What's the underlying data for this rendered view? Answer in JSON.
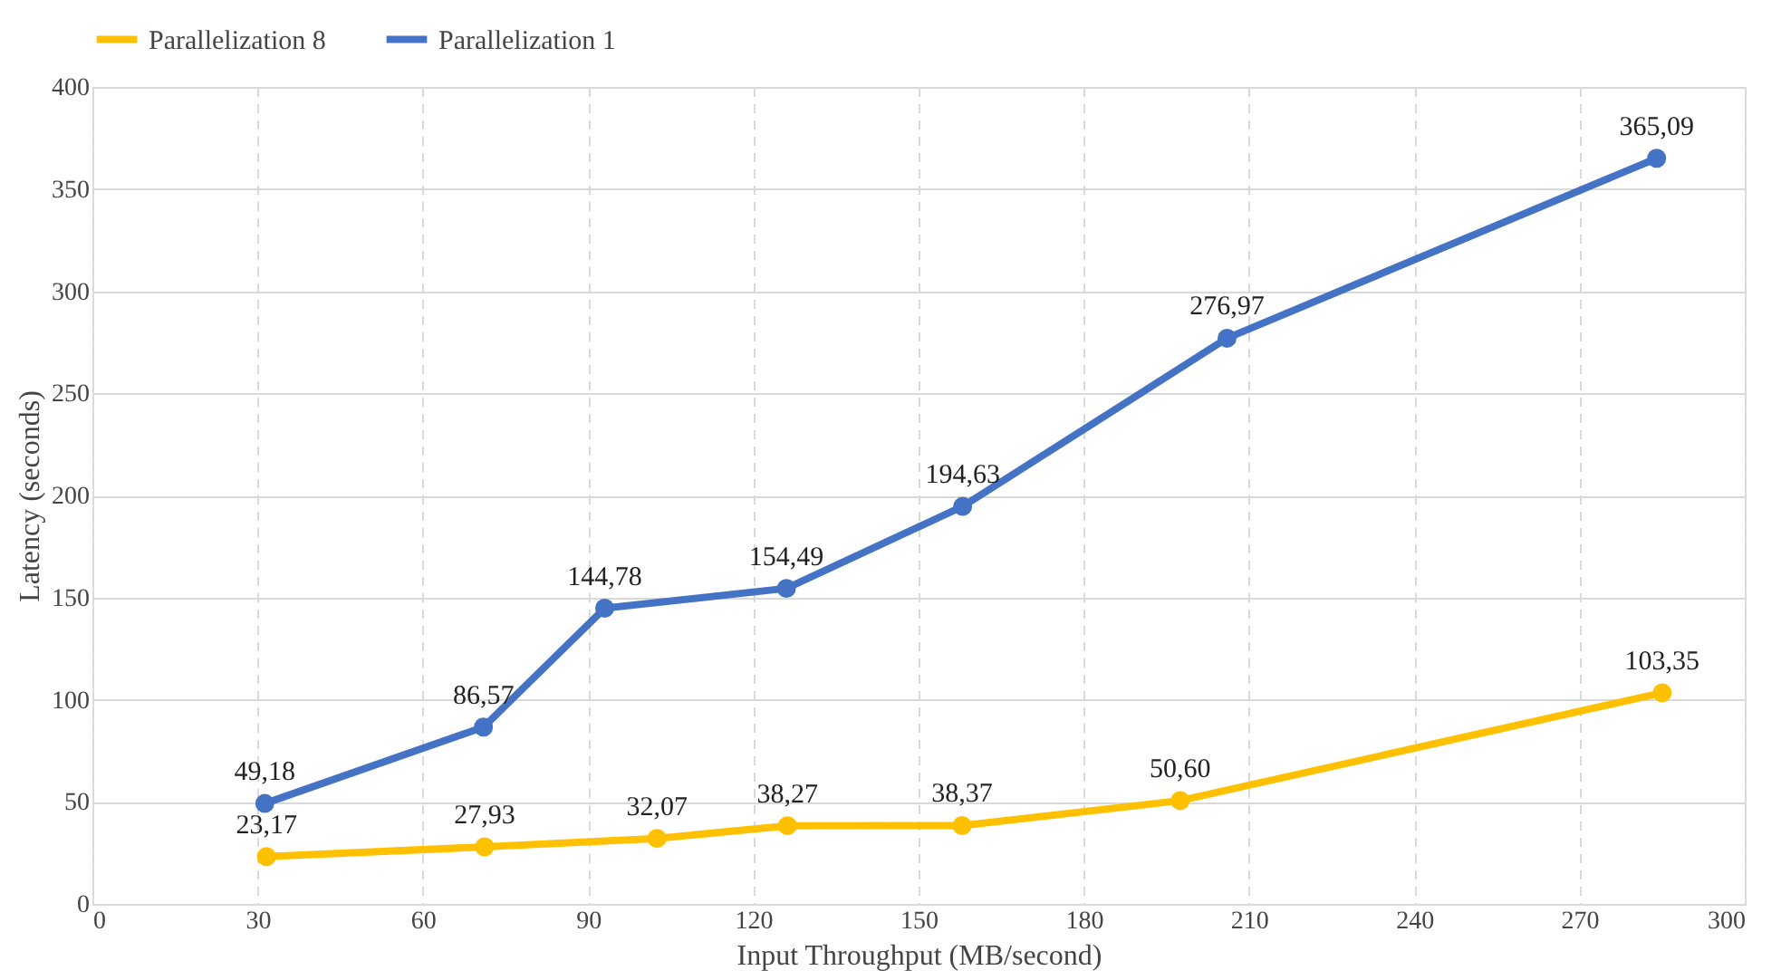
{
  "chart_data": {
    "type": "line",
    "xlabel": "Input Throughput (MB/second)",
    "ylabel": "Latency (seconds)",
    "series": [
      {
        "name": "Parallelization 8",
        "color": "#ffc000",
        "x": [
          31.6,
          71.2,
          102.5,
          126.2,
          157.9,
          197.5,
          285
        ],
        "values": [
          23.17,
          27.93,
          32.07,
          38.27,
          38.37,
          50.6,
          103.35
        ],
        "value_labels": [
          "23,17",
          "27,93",
          "32,07",
          "38,27",
          "38,37",
          "50,60",
          "103,35"
        ]
      },
      {
        "name": "Parallelization 1",
        "color": "#4472c4",
        "x": [
          31.3,
          71,
          93,
          126,
          158,
          206,
          284
        ],
        "values": [
          49.18,
          86.57,
          144.78,
          154.49,
          194.63,
          276.97,
          365.09
        ],
        "value_labels": [
          "49,18",
          "86,57",
          "144,78",
          "154,49",
          "194,63",
          "276,97",
          "365,09"
        ]
      }
    ],
    "xlim": [
      0,
      300
    ],
    "xticks": [
      0,
      30,
      60,
      90,
      120,
      150,
      180,
      210,
      240,
      270,
      300
    ],
    "ylim": [
      0,
      400
    ],
    "yticks": [
      0,
      50,
      100,
      150,
      200,
      250,
      300,
      350,
      400
    ],
    "grid": true,
    "legend": "top",
    "marker": "circle",
    "line_style": "solid"
  }
}
